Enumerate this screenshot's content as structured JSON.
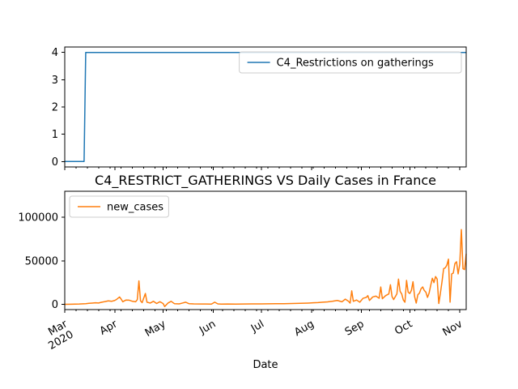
{
  "chart_data": [
    {
      "type": "line",
      "series": [
        {
          "name": "C4_Restrictions on gatherings",
          "color": "#1f77b4",
          "points": [
            [
              "2020-03-01",
              0
            ],
            [
              "2020-03-13",
              0
            ],
            [
              "2020-03-14",
              4
            ],
            [
              "2020-11-05",
              4
            ]
          ]
        }
      ],
      "ylim": [
        -0.2,
        4.2
      ],
      "yticks": [
        0,
        1,
        2,
        3,
        4
      ],
      "xlim": [
        "2020-03-01",
        "2020-11-05"
      ],
      "legend_loc": "upper right",
      "title": "",
      "xlabel": "",
      "ylabel": ""
    },
    {
      "type": "line",
      "title": "C4_RESTRICT_GATHERINGS VS Daily Cases in France",
      "xlabel": "Date",
      "ylabel": "",
      "ylim": [
        -6000,
        130000
      ],
      "yticks": [
        0,
        50000,
        100000
      ],
      "ytick_labels": [
        "0",
        "50000",
        "100000"
      ],
      "xlim": [
        "2020-03-01",
        "2020-11-05"
      ],
      "xticks": [
        "2020-03-01",
        "2020-04-01",
        "2020-05-01",
        "2020-06-01",
        "2020-07-01",
        "2020-08-01",
        "2020-09-01",
        "2020-10-01",
        "2020-11-01"
      ],
      "xtick_labels": [
        [
          "Mar",
          "2020"
        ],
        [
          "Apr"
        ],
        [
          "May"
        ],
        [
          "Jun"
        ],
        [
          "Jul"
        ],
        [
          "Aug"
        ],
        [
          "Sep"
        ],
        [
          "Oct"
        ],
        [
          "Nov"
        ]
      ],
      "legend_loc": "upper left",
      "series": [
        {
          "name": "new_cases",
          "color": "#ff7f0e",
          "points": [
            [
              "2020-03-01",
              100
            ],
            [
              "2020-03-05",
              200
            ],
            [
              "2020-03-10",
              400
            ],
            [
              "2020-03-14",
              800
            ],
            [
              "2020-03-16",
              1200
            ],
            [
              "2020-03-18",
              1500
            ],
            [
              "2020-03-20",
              1800
            ],
            [
              "2020-03-22",
              1600
            ],
            [
              "2020-03-24",
              2500
            ],
            [
              "2020-03-26",
              3200
            ],
            [
              "2020-03-28",
              4000
            ],
            [
              "2020-03-30",
              3500
            ],
            [
              "2020-04-01",
              4500
            ],
            [
              "2020-04-02",
              5500
            ],
            [
              "2020-04-04",
              8500
            ],
            [
              "2020-04-05",
              6000
            ],
            [
              "2020-04-06",
              3000
            ],
            [
              "2020-04-08",
              5000
            ],
            [
              "2020-04-10",
              4800
            ],
            [
              "2020-04-12",
              3500
            ],
            [
              "2020-04-14",
              3000
            ],
            [
              "2020-04-15",
              5500
            ],
            [
              "2020-04-16",
              27000
            ],
            [
              "2020-04-17",
              4000
            ],
            [
              "2020-04-18",
              2000
            ],
            [
              "2020-04-20",
              12500
            ],
            [
              "2020-04-21",
              2500
            ],
            [
              "2020-04-23",
              1500
            ],
            [
              "2020-04-25",
              3500
            ],
            [
              "2020-04-27",
              1000
            ],
            [
              "2020-04-29",
              3000
            ],
            [
              "2020-05-01",
              1000
            ],
            [
              "2020-05-02",
              -2500
            ],
            [
              "2020-05-04",
              1500
            ],
            [
              "2020-05-06",
              3500
            ],
            [
              "2020-05-08",
              800
            ],
            [
              "2020-05-11",
              500
            ],
            [
              "2020-05-13",
              1500
            ],
            [
              "2020-05-15",
              2500
            ],
            [
              "2020-05-17",
              800
            ],
            [
              "2020-05-20",
              500
            ],
            [
              "2020-05-25",
              400
            ],
            [
              "2020-05-31",
              300
            ],
            [
              "2020-06-02",
              2500
            ],
            [
              "2020-06-04",
              500
            ],
            [
              "2020-06-06",
              300
            ],
            [
              "2020-06-10",
              400
            ],
            [
              "2020-06-15",
              300
            ],
            [
              "2020-06-20",
              400
            ],
            [
              "2020-06-25",
              500
            ],
            [
              "2020-07-01",
              500
            ],
            [
              "2020-07-05",
              600
            ],
            [
              "2020-07-10",
              700
            ],
            [
              "2020-07-15",
              800
            ],
            [
              "2020-07-20",
              1000
            ],
            [
              "2020-07-25",
              1200
            ],
            [
              "2020-07-30",
              1500
            ],
            [
              "2020-08-02",
              1800
            ],
            [
              "2020-08-05",
              2000
            ],
            [
              "2020-08-08",
              2500
            ],
            [
              "2020-08-11",
              2800
            ],
            [
              "2020-08-14",
              3500
            ],
            [
              "2020-08-17",
              4500
            ],
            [
              "2020-08-20",
              3000
            ],
            [
              "2020-08-22",
              6000
            ],
            [
              "2020-08-24",
              3500
            ],
            [
              "2020-08-25",
              1500
            ],
            [
              "2020-08-26",
              15500
            ],
            [
              "2020-08-27",
              3500
            ],
            [
              "2020-08-29",
              5000
            ],
            [
              "2020-08-31",
              2500
            ],
            [
              "2020-09-02",
              7000
            ],
            [
              "2020-09-04",
              8000
            ],
            [
              "2020-09-05",
              10000
            ],
            [
              "2020-09-06",
              4500
            ],
            [
              "2020-09-08",
              8500
            ],
            [
              "2020-09-10",
              9500
            ],
            [
              "2020-09-12",
              7000
            ],
            [
              "2020-09-13",
              20000
            ],
            [
              "2020-09-14",
              6500
            ],
            [
              "2020-09-16",
              10000
            ],
            [
              "2020-09-18",
              12000
            ],
            [
              "2020-09-19",
              22500
            ],
            [
              "2020-09-20",
              9000
            ],
            [
              "2020-09-21",
              5500
            ],
            [
              "2020-09-23",
              12000
            ],
            [
              "2020-09-24",
              29000
            ],
            [
              "2020-09-25",
              15000
            ],
            [
              "2020-09-26",
              12000
            ],
            [
              "2020-09-27",
              5000
            ],
            [
              "2020-09-28",
              2500
            ],
            [
              "2020-09-29",
              27500
            ],
            [
              "2020-09-30",
              14000
            ],
            [
              "2020-10-01",
              12500
            ],
            [
              "2020-10-02",
              16000
            ],
            [
              "2020-10-03",
              26000
            ],
            [
              "2020-10-04",
              9000
            ],
            [
              "2020-10-05",
              1500
            ],
            [
              "2020-10-06",
              11000
            ],
            [
              "2020-10-07",
              13000
            ],
            [
              "2020-10-08",
              18000
            ],
            [
              "2020-10-09",
              20000
            ],
            [
              "2020-10-10",
              16000
            ],
            [
              "2020-10-11",
              14000
            ],
            [
              "2020-10-12",
              8000
            ],
            [
              "2020-10-13",
              13000
            ],
            [
              "2020-10-14",
              22000
            ],
            [
              "2020-10-15",
              30000
            ],
            [
              "2020-10-16",
              25000
            ],
            [
              "2020-10-17",
              32000
            ],
            [
              "2020-10-18",
              29000
            ],
            [
              "2020-10-19",
              1000
            ],
            [
              "2020-10-20",
              13000
            ],
            [
              "2020-10-21",
              26000
            ],
            [
              "2020-10-22",
              41000
            ],
            [
              "2020-10-23",
              42000
            ],
            [
              "2020-10-24",
              45000
            ],
            [
              "2020-10-25",
              52000
            ],
            [
              "2020-10-26",
              2500
            ],
            [
              "2020-10-27",
              35000
            ],
            [
              "2020-10-28",
              36000
            ],
            [
              "2020-10-29",
              47000
            ],
            [
              "2020-10-30",
              49000
            ],
            [
              "2020-10-31",
              35000
            ],
            [
              "2020-11-01",
              46000
            ],
            [
              "2020-11-02",
              86000
            ],
            [
              "2020-11-03",
              41000
            ],
            [
              "2020-11-04",
              40000
            ],
            [
              "2020-11-05",
              58000
            ]
          ]
        }
      ]
    }
  ]
}
